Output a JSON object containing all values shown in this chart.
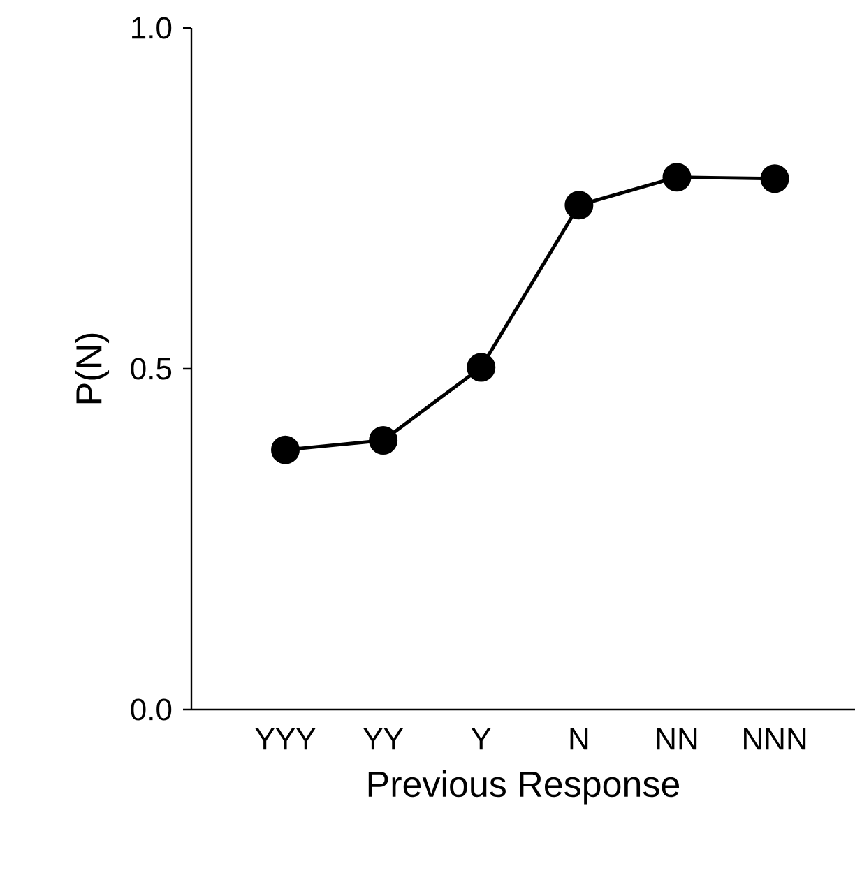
{
  "chart_data": {
    "type": "line",
    "xlabel": "Previous Response",
    "ylabel": "P(N)",
    "categories": [
      "YYY",
      "YY",
      "Y",
      "N",
      "NN",
      "NNN"
    ],
    "series": [
      {
        "color": "#000000",
        "values": [
          0.381,
          0.395,
          0.502,
          0.74,
          0.781,
          0.779
        ]
      }
    ],
    "ylim": [
      0,
      1
    ],
    "yticks": [
      {
        "value": 0,
        "label": "0.0"
      },
      {
        "value": 0.5,
        "label": "0.5"
      },
      {
        "value": 1,
        "label": "1.0"
      }
    ],
    "marker": "circle",
    "line_style": "solid",
    "grid": false
  }
}
